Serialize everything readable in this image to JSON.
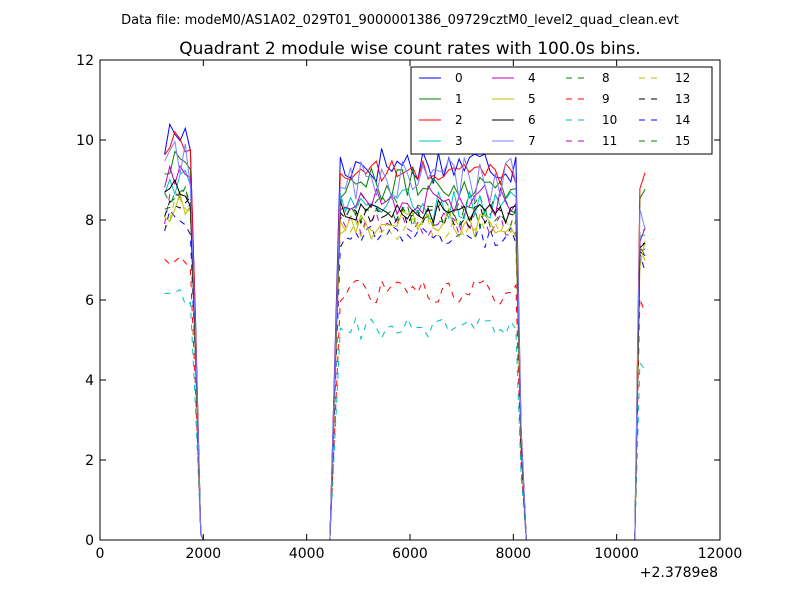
{
  "figure": {
    "suptitle": "Data file: modeM0/AS1A02_029T01_9000001386_09729cztM0_level2_quad_clean.evt"
  },
  "chart_data": {
    "type": "line",
    "title": "Quadrant 2 module wise count rates with 100.0s bins.",
    "xlabel": "",
    "ylabel": "",
    "xlim": [
      0,
      12000
    ],
    "ylim": [
      0,
      12
    ],
    "x_offset_label": "+2.3789e8",
    "x_ticks": [
      0,
      2000,
      4000,
      6000,
      8000,
      10000,
      12000
    ],
    "y_ticks": [
      0,
      2,
      4,
      6,
      8,
      10,
      12
    ],
    "x_tick_labels": [
      "0",
      "2000",
      "4000",
      "6000",
      "8000",
      "10000",
      "12000"
    ],
    "y_tick_labels": [
      "0",
      "2",
      "4",
      "6",
      "8",
      "10",
      "12"
    ],
    "legend_position": "top-right",
    "legend_columns": 4,
    "segments": [
      {
        "x_start": 1250,
        "x_end": 1750,
        "step": 100,
        "drop_to": 2000
      },
      {
        "x_start": 4650,
        "x_end": 8050,
        "step": 100,
        "rise_from": 4450,
        "drop_to": 8250
      },
      {
        "x_start": 10450,
        "x_end": 10550,
        "step": 100,
        "rise_from": 10350
      }
    ],
    "series": [
      {
        "name": "0",
        "color": "#0000ff",
        "dash": "solid",
        "levels": [
          9.9,
          9.4,
          8.9
        ],
        "spike": 7.5,
        "noise": 0.5
      },
      {
        "name": "1",
        "color": "#008000",
        "dash": "solid",
        "levels": [
          9.3,
          8.9,
          8.6
        ],
        "spike": 8.8,
        "noise": 0.4
      },
      {
        "name": "2",
        "color": "#ff0000",
        "dash": "solid",
        "levels": [
          9.7,
          9.2,
          8.8
        ],
        "spike": 9.0,
        "noise": 0.3
      },
      {
        "name": "3",
        "color": "#00bfbf",
        "dash": "solid",
        "levels": [
          8.7,
          8.4,
          8.1
        ],
        "spike": 7.9,
        "noise": 0.4
      },
      {
        "name": "4",
        "color": "#bf00bf",
        "dash": "solid",
        "levels": [
          8.8,
          8.5,
          8.2
        ],
        "spike": 7.8,
        "noise": 0.4
      },
      {
        "name": "5",
        "color": "#bfbf00",
        "dash": "solid",
        "levels": [
          8.0,
          7.9,
          7.5
        ],
        "spike": 7.2,
        "noise": 0.4
      },
      {
        "name": "6",
        "color": "#000000",
        "dash": "solid",
        "levels": [
          8.6,
          8.2,
          8.4
        ],
        "spike": 7.6,
        "noise": 0.3
      },
      {
        "name": "7",
        "color": "#7f7fff",
        "dash": "solid",
        "levels": [
          9.2,
          9.0,
          8.8
        ],
        "spike": 7.7,
        "noise": 0.6
      },
      {
        "name": "8",
        "color": "#008000",
        "dash": "dashed",
        "levels": [
          8.5,
          8.4,
          8.3
        ],
        "spike": 7.5,
        "noise": 0.3
      },
      {
        "name": "9",
        "color": "#ff0000",
        "dash": "dashed",
        "levels": [
          6.8,
          6.2,
          6.3
        ],
        "spike": 5.8,
        "noise": 0.3
      },
      {
        "name": "10",
        "color": "#00bfbf",
        "dash": "dashed",
        "levels": [
          5.9,
          5.3,
          5.4
        ],
        "spike": 4.2,
        "noise": 0.3
      },
      {
        "name": "11",
        "color": "#bf00bf",
        "dash": "dashed",
        "levels": [
          8.2,
          7.9,
          7.8
        ],
        "spike": 7.0,
        "noise": 0.3
      },
      {
        "name": "12",
        "color": "#bfbf00",
        "dash": "dashed",
        "levels": [
          8.0,
          7.8,
          7.7
        ],
        "spike": 7.1,
        "noise": 0.3
      },
      {
        "name": "13",
        "color": "#000000",
        "dash": "dashed",
        "levels": [
          8.3,
          8.1,
          8.0
        ],
        "spike": 7.3,
        "noise": 0.3
      },
      {
        "name": "14",
        "color": "#0000ff",
        "dash": "dashed",
        "levels": [
          7.9,
          7.6,
          7.5
        ],
        "spike": 7.0,
        "noise": 0.3
      },
      {
        "name": "15",
        "color": "#008000",
        "dash": "dashed",
        "levels": [
          8.4,
          8.1,
          7.9
        ],
        "spike": 7.2,
        "noise": 0.3
      }
    ]
  }
}
